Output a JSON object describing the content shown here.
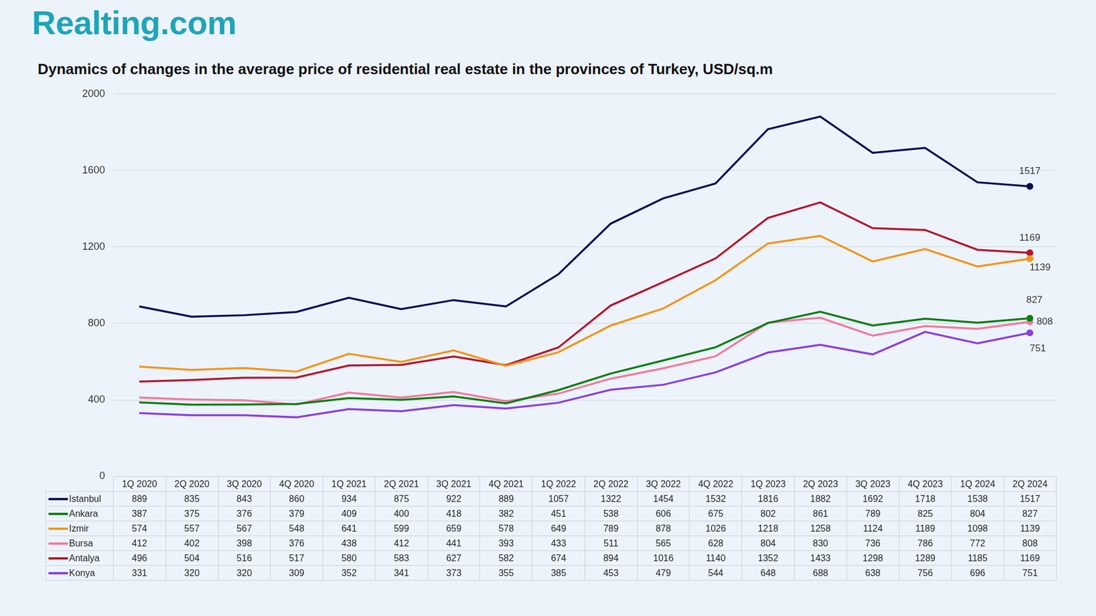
{
  "header": {
    "logo": "Realting.com"
  },
  "chart_data": {
    "type": "line",
    "title": "Dynamics of changes in the average price of residential real estate in the provinces of Turkey, USD/sq.m",
    "categories": [
      "1Q 2020",
      "2Q 2020",
      "3Q 2020",
      "4Q 2020",
      "1Q 2021",
      "2Q 2021",
      "3Q 2021",
      "4Q 2021",
      "1Q 2022",
      "2Q 2022",
      "3Q 2022",
      "4Q 2022",
      "1Q 2023",
      "2Q 2023",
      "3Q 2023",
      "4Q 2023",
      "1Q 2024",
      "2Q 2024"
    ],
    "series": [
      {
        "name": "Istanbul",
        "color": "#0e0c52",
        "values": [
          889,
          835,
          843,
          860,
          934,
          875,
          922,
          889,
          1057,
          1322,
          1454,
          1532,
          1816,
          1882,
          1692,
          1718,
          1538,
          1517
        ]
      },
      {
        "name": "Ankara",
        "color": "#0c7d14",
        "values": [
          387,
          375,
          376,
          379,
          409,
          400,
          418,
          382,
          451,
          538,
          606,
          675,
          802,
          861,
          789,
          825,
          804,
          827
        ]
      },
      {
        "name": "Izmir",
        "color": "#f0961c",
        "values": [
          574,
          557,
          567,
          548,
          641,
          599,
          659,
          578,
          649,
          789,
          878,
          1026,
          1218,
          1258,
          1124,
          1189,
          1098,
          1139
        ]
      },
      {
        "name": "Bursa",
        "color": "#ef7b9c",
        "values": [
          412,
          402,
          398,
          376,
          438,
          412,
          441,
          393,
          433,
          511,
          565,
          628,
          804,
          830,
          736,
          786,
          772,
          808
        ]
      },
      {
        "name": "Antalya",
        "color": "#b3172d",
        "values": [
          496,
          504,
          516,
          517,
          580,
          583,
          627,
          582,
          674,
          894,
          1016,
          1140,
          1352,
          1433,
          1298,
          1289,
          1185,
          1169
        ]
      },
      {
        "name": "Konya",
        "color": "#8a3fdc",
        "values": [
          331,
          320,
          320,
          309,
          352,
          341,
          373,
          355,
          385,
          453,
          479,
          544,
          648,
          688,
          638,
          756,
          696,
          751
        ]
      }
    ],
    "ylim": [
      0,
      2000
    ],
    "yticks": [
      0,
      400,
      800,
      1200,
      1600,
      2000
    ],
    "grid": true,
    "annotations": [
      {
        "series": "Istanbul",
        "category": "2Q 2024",
        "text": "1517"
      },
      {
        "series": "Antalya",
        "category": "2Q 2024",
        "text": "1169"
      },
      {
        "series": "Izmir",
        "category": "2Q 2024",
        "text": "1139"
      },
      {
        "series": "Ankara",
        "category": "2Q 2024",
        "text": "827"
      },
      {
        "series": "Bursa",
        "category": "2Q 2024",
        "text": "808"
      },
      {
        "series": "Konya",
        "category": "2Q 2024",
        "text": "751"
      }
    ]
  }
}
